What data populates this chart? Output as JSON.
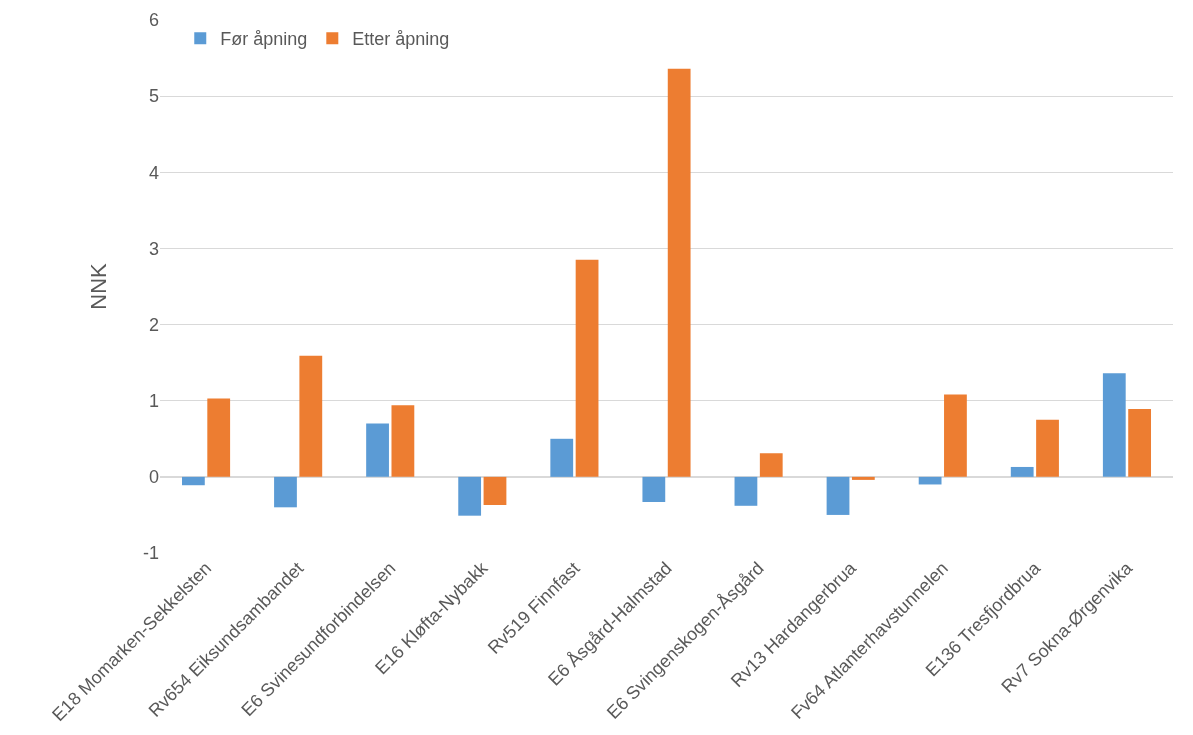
{
  "chart_data": {
    "type": "bar",
    "ylabel": "NNK",
    "categories": [
      "E18 Momarken-Sekkelsten",
      "Rv654 Eiksundsambandet",
      "E6 Svinesundforbindelsen",
      "E16 Kløfta-Nybakk",
      "Rv519 Finnfast",
      "E6 Åsgård-Halmstad",
      "E6 Svingenskogen-Åsgård",
      "Rv13 Hardangerbrua",
      "Fv64 Atlanterhavstunnelen",
      "E136 Tresfjordbrua",
      "Rv7 Sokna-Ørgenvika"
    ],
    "series": [
      {
        "name": "Før åpning",
        "color": "#5b9bd5",
        "values": [
          -0.11,
          -0.4,
          0.7,
          -0.51,
          0.5,
          -0.33,
          -0.38,
          -0.5,
          -0.1,
          0.13,
          1.36
        ]
      },
      {
        "name": "Etter åpning",
        "color": "#ed7d31",
        "values": [
          1.03,
          1.59,
          0.94,
          -0.37,
          2.85,
          5.36,
          0.31,
          -0.04,
          1.08,
          0.75,
          0.89
        ]
      }
    ],
    "ylim": [
      -1,
      6
    ],
    "yticks": [
      -1,
      0,
      1,
      2,
      3,
      4,
      5,
      6
    ],
    "grid": "y",
    "legend": "top left"
  }
}
